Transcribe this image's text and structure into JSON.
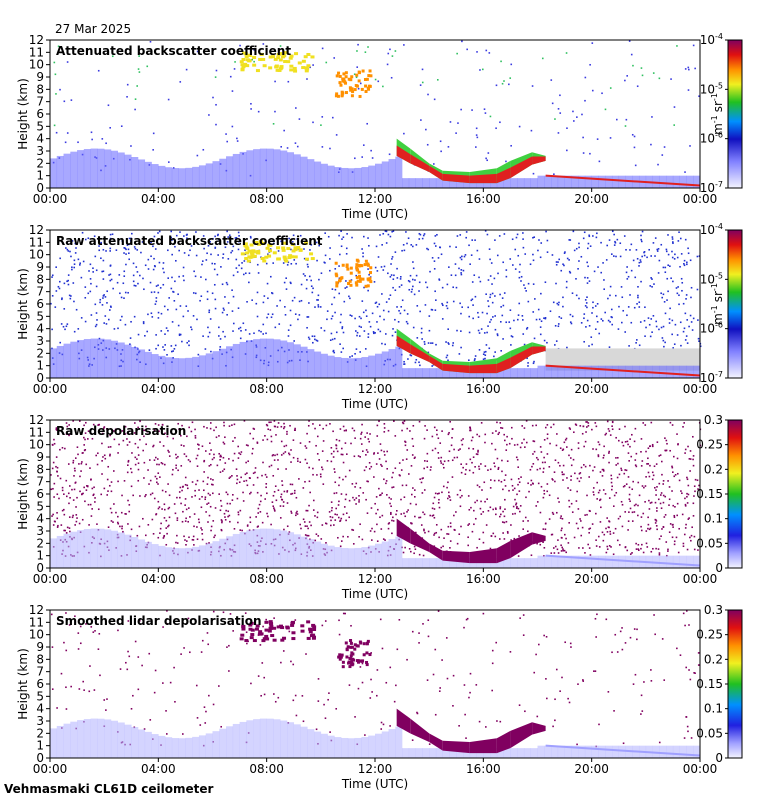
{
  "date": "27 Mar 2025",
  "footer": "Vehmasmaki CL61D ceilometer",
  "colors": {
    "background": "#ffffff",
    "noise_blue": "#3a3ae0",
    "boundary_layer": "#6060ff",
    "green": "#40d040",
    "yellow": "#f0e020",
    "orange": "#ff9000",
    "red": "#e02020",
    "purple": "#800060",
    "gray_missing": "#d8d8d8"
  },
  "chart_data": [
    {
      "type": "heatmap",
      "title": "Attenuated backscatter coefficient",
      "xlabel": "Time (UTC)",
      "ylabel": "Height (km)",
      "xticks": [
        "00:00",
        "04:00",
        "08:00",
        "12:00",
        "16:00",
        "20:00",
        "00:00"
      ],
      "xlim_hours": [
        0,
        24
      ],
      "ylim_km": [
        0,
        12
      ],
      "yticks": [
        "0",
        "1",
        "2",
        "3",
        "4",
        "5",
        "6",
        "7",
        "8",
        "9",
        "10",
        "11",
        "12"
      ],
      "colorbar": {
        "scale": "log",
        "ticks": [
          "10^-7",
          "10^-6",
          "10^-5",
          "10^-4"
        ],
        "range": [
          1e-07,
          0.0001
        ],
        "units_label": "m^-1 sr^-1"
      }
    },
    {
      "type": "heatmap",
      "title": "Raw attenuated backscatter coefficient",
      "xlabel": "Time (UTC)",
      "ylabel": "Height (km)",
      "xticks": [
        "00:00",
        "04:00",
        "08:00",
        "12:00",
        "16:00",
        "20:00",
        "00:00"
      ],
      "xlim_hours": [
        0,
        24
      ],
      "ylim_km": [
        0,
        12
      ],
      "yticks": [
        "0",
        "1",
        "2",
        "3",
        "4",
        "5",
        "6",
        "7",
        "8",
        "9",
        "10",
        "11",
        "12"
      ],
      "colorbar": {
        "scale": "log",
        "ticks": [
          "10^-7",
          "10^-6",
          "10^-5",
          "10^-4"
        ],
        "range": [
          1e-07,
          0.0001
        ],
        "units_label": "m^-1 sr^-1"
      }
    },
    {
      "type": "heatmap",
      "title": "Raw depolarisation",
      "xlabel": "Time (UTC)",
      "ylabel": "Height (km)",
      "xticks": [
        "00:00",
        "04:00",
        "08:00",
        "12:00",
        "16:00",
        "20:00",
        "00:00"
      ],
      "xlim_hours": [
        0,
        24
      ],
      "ylim_km": [
        0,
        12
      ],
      "yticks": [
        "0",
        "1",
        "2",
        "3",
        "4",
        "5",
        "6",
        "7",
        "8",
        "9",
        "10",
        "11",
        "12"
      ],
      "colorbar": {
        "scale": "linear",
        "ticks": [
          "0",
          "0.05",
          "0.1",
          "0.15",
          "0.2",
          "0.25",
          "0.3"
        ],
        "range": [
          0,
          0.3
        ],
        "units_label": ""
      }
    },
    {
      "type": "heatmap",
      "title": "Smoothed lidar depolarisation",
      "xlabel": "Time (UTC)",
      "ylabel": "Height (km)",
      "xticks": [
        "00:00",
        "04:00",
        "08:00",
        "12:00",
        "16:00",
        "20:00",
        "00:00"
      ],
      "xlim_hours": [
        0,
        24
      ],
      "ylim_km": [
        0,
        12
      ],
      "yticks": [
        "0",
        "1",
        "2",
        "3",
        "4",
        "5",
        "6",
        "7",
        "8",
        "9",
        "10",
        "11",
        "12"
      ],
      "colorbar": {
        "scale": "linear",
        "ticks": [
          "0",
          "0.05",
          "0.1",
          "0.15",
          "0.2",
          "0.25",
          "0.3"
        ],
        "range": [
          0,
          0.3
        ],
        "units_label": ""
      }
    }
  ]
}
